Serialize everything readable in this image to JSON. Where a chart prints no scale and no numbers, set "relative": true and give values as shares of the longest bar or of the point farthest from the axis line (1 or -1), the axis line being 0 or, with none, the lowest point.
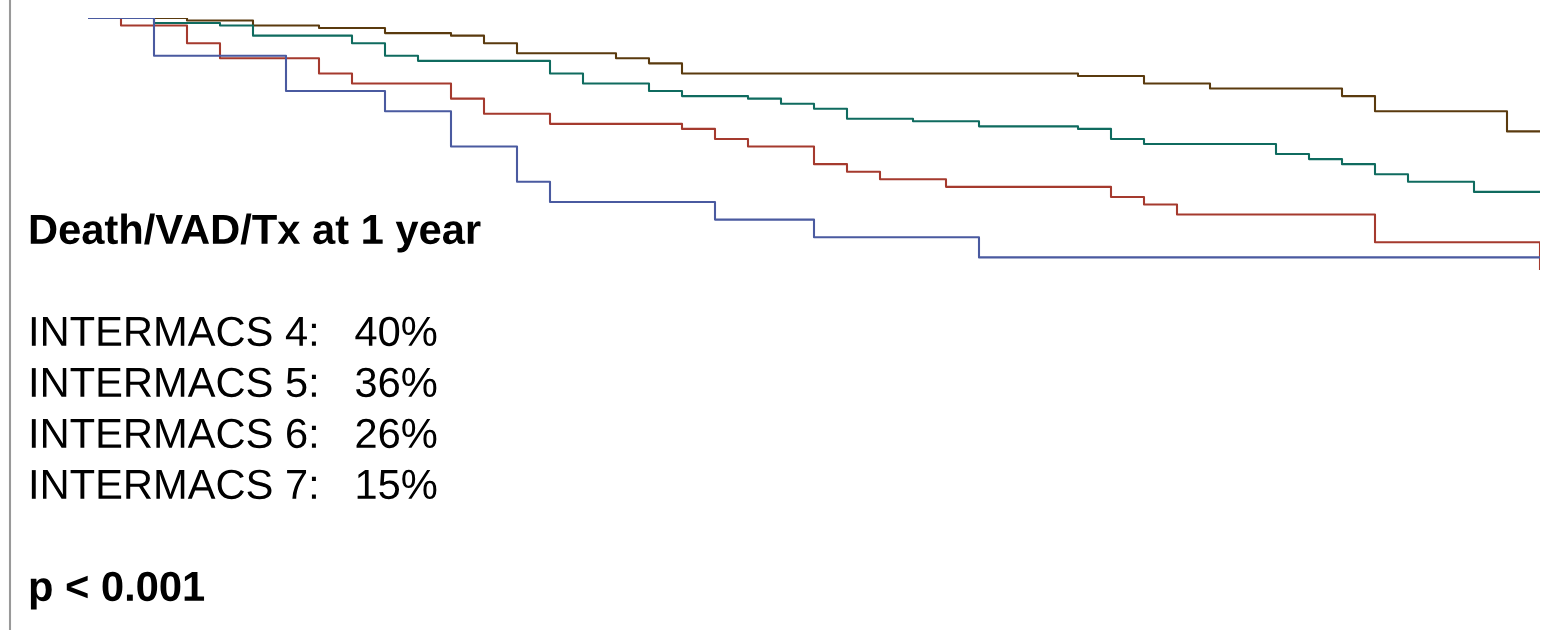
{
  "chart_data": {
    "type": "step",
    "relative": true,
    "tick_labels": false,
    "grid": false,
    "categories": [
      null,
      null,
      null,
      null,
      null,
      null,
      null,
      null,
      null,
      null,
      null,
      null,
      null,
      null,
      null,
      null,
      null,
      null,
      null,
      null,
      null,
      null,
      null,
      null,
      null,
      null,
      null,
      null,
      null,
      null,
      null,
      null,
      null,
      null,
      null,
      null,
      null,
      null,
      null,
      null,
      null,
      null,
      null,
      null,
      null
    ],
    "series": [
      {
        "color": "#5a3a0e",
        "values": [
          1,
          1,
          1,
          0.99,
          0.99,
          0.97,
          0.97,
          0.96,
          0.96,
          0.94,
          0.94,
          0.93,
          0.9,
          0.86,
          0.86,
          0.86,
          0.84,
          0.82,
          0.78,
          0.78,
          0.78,
          0.78,
          0.78,
          0.78,
          0.78,
          0.78,
          0.78,
          0.78,
          0.78,
          0.78,
          0.77,
          0.77,
          0.74,
          0.74,
          0.72,
          0.72,
          0.72,
          0.72,
          0.69,
          0.63,
          0.63,
          0.63,
          0.63,
          0.55,
          0.55
        ]
      },
      {
        "color": "#0f6b5f",
        "values": [
          1,
          1,
          0.98,
          0.98,
          0.97,
          0.93,
          0.93,
          0.93,
          0.9,
          0.85,
          0.83,
          0.83,
          0.83,
          0.83,
          0.78,
          0.74,
          0.74,
          0.71,
          0.69,
          0.69,
          0.68,
          0.66,
          0.64,
          0.6,
          0.6,
          0.59,
          0.59,
          0.57,
          0.57,
          0.57,
          0.56,
          0.52,
          0.5,
          0.5,
          0.5,
          0.5,
          0.46,
          0.44,
          0.42,
          0.38,
          0.35,
          0.35,
          0.31,
          0.31,
          0.31
        ]
      },
      {
        "color": "#a53a2e",
        "values": [
          1,
          0.97,
          0.97,
          0.9,
          0.84,
          0.84,
          0.84,
          0.78,
          0.74,
          0.74,
          0.74,
          0.68,
          0.62,
          0.62,
          0.58,
          0.58,
          0.58,
          0.58,
          0.56,
          0.52,
          0.49,
          0.49,
          0.42,
          0.39,
          0.36,
          0.36,
          0.33,
          0.33,
          0.33,
          0.33,
          0.33,
          0.29,
          0.26,
          0.22,
          0.22,
          0.22,
          0.22,
          0.22,
          0.22,
          0.11,
          0.11,
          0.11,
          0.11,
          0.11,
          0
        ]
      },
      {
        "color": "#4a5aa0",
        "values": [
          1,
          1,
          0.85,
          0.85,
          0.85,
          0.85,
          0.71,
          0.71,
          0.71,
          0.63,
          0.63,
          0.49,
          0.49,
          0.35,
          0.27,
          0.27,
          0.27,
          0.27,
          0.27,
          0.2,
          0.2,
          0.2,
          0.13,
          0.13,
          0.13,
          0.13,
          0.13,
          0.05,
          0.05,
          0.05,
          0.05,
          0.05,
          0.05,
          0.05,
          0.05,
          0.05,
          0.05,
          0.05,
          0.05,
          0.05,
          0.05,
          0.05,
          0.05,
          0.05,
          0.05
        ]
      }
    ],
    "annotations": [
      "Death/VAD/Tx at 1 year",
      "INTERMACS 4:   40%",
      "INTERMACS 5:   36%",
      "INTERMACS 6:   26%",
      "INTERMACS 7:   15%",
      "p < 0.001"
    ]
  }
}
